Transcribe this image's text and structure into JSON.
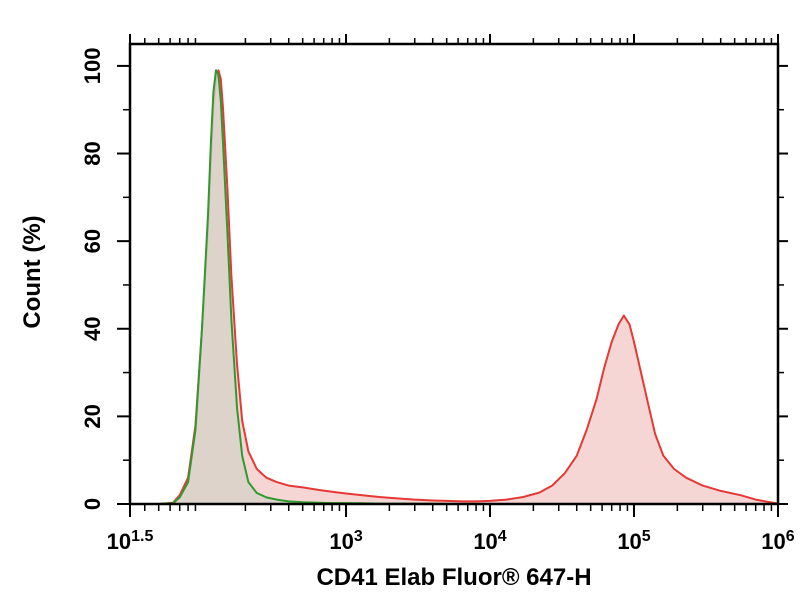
{
  "chart_data": {
    "type": "histogram",
    "x_scale": "log",
    "xlim": [
      31.6,
      1000000
    ],
    "ylim": [
      0,
      105
    ],
    "xlabel": "CD41 Elab Fluor® 647-H",
    "ylabel": "Count (%)",
    "x_ticks": [
      {
        "value": 31.6,
        "label": "10",
        "exp": "1.5"
      },
      {
        "value": 1000,
        "label": "10",
        "exp": "3"
      },
      {
        "value": 10000,
        "label": "10",
        "exp": "4"
      },
      {
        "value": 100000,
        "label": "10",
        "exp": "5"
      },
      {
        "value": 1000000,
        "label": "10",
        "exp": "6"
      }
    ],
    "y_ticks": [
      0,
      20,
      40,
      60,
      80,
      100
    ],
    "grid": false,
    "series": [
      {
        "color": "#e53935",
        "fill": "#f6d5d5",
        "x": [
          31.6,
          50,
          63,
          70,
          80,
          90,
          100,
          110,
          115,
          120,
          125,
          130,
          135,
          140,
          150,
          160,
          175,
          190,
          210,
          240,
          280,
          330,
          400,
          500,
          650,
          800,
          1000,
          1300,
          1700,
          2200,
          3000,
          4000,
          5000,
          6500,
          8000,
          10000,
          13000,
          17000,
          22000,
          27000,
          33000,
          40000,
          47000,
          55000,
          62000,
          70000,
          78000,
          85000,
          93000,
          100000,
          110000,
          125000,
          140000,
          160000,
          190000,
          230000,
          300000,
          400000,
          550000,
          700000,
          850000,
          1000000
        ],
        "y": [
          0,
          0,
          0.3,
          2,
          6,
          18,
          40,
          63,
          78,
          90,
          97,
          99,
          97,
          90,
          72,
          52,
          32,
          19,
          12,
          8,
          6,
          5,
          4.2,
          3.8,
          3.2,
          2.8,
          2.4,
          2,
          1.6,
          1.3,
          1.0,
          0.8,
          0.7,
          0.6,
          0.6,
          0.7,
          1,
          1.6,
          2.6,
          4.2,
          7,
          11,
          17,
          24,
          31,
          37,
          41,
          43,
          41,
          37,
          31,
          23,
          16,
          11,
          8,
          6,
          4.2,
          3,
          2,
          1,
          0.5,
          0.1
        ]
      },
      {
        "color": "#2e9a2e",
        "fill": "#d8d2c8",
        "x": [
          31.6,
          50,
          63,
          70,
          80,
          90,
          100,
          110,
          115,
          120,
          125,
          130,
          135,
          140,
          150,
          160,
          175,
          190,
          210,
          240,
          280,
          330,
          400,
          500,
          650,
          800,
          1000,
          1300,
          1700,
          2200,
          3000,
          4000,
          5000,
          6500
        ],
        "y": [
          0,
          0,
          0.2,
          1.5,
          5,
          17,
          40,
          66,
          82,
          94,
          99,
          98,
          92,
          82,
          62,
          42,
          22,
          11,
          5,
          2.5,
          1.5,
          1,
          0.6,
          0.4,
          0.3,
          0.2,
          0.2,
          0.15,
          0.1,
          0.1,
          0.1,
          0.05,
          0.02,
          0
        ]
      }
    ]
  }
}
